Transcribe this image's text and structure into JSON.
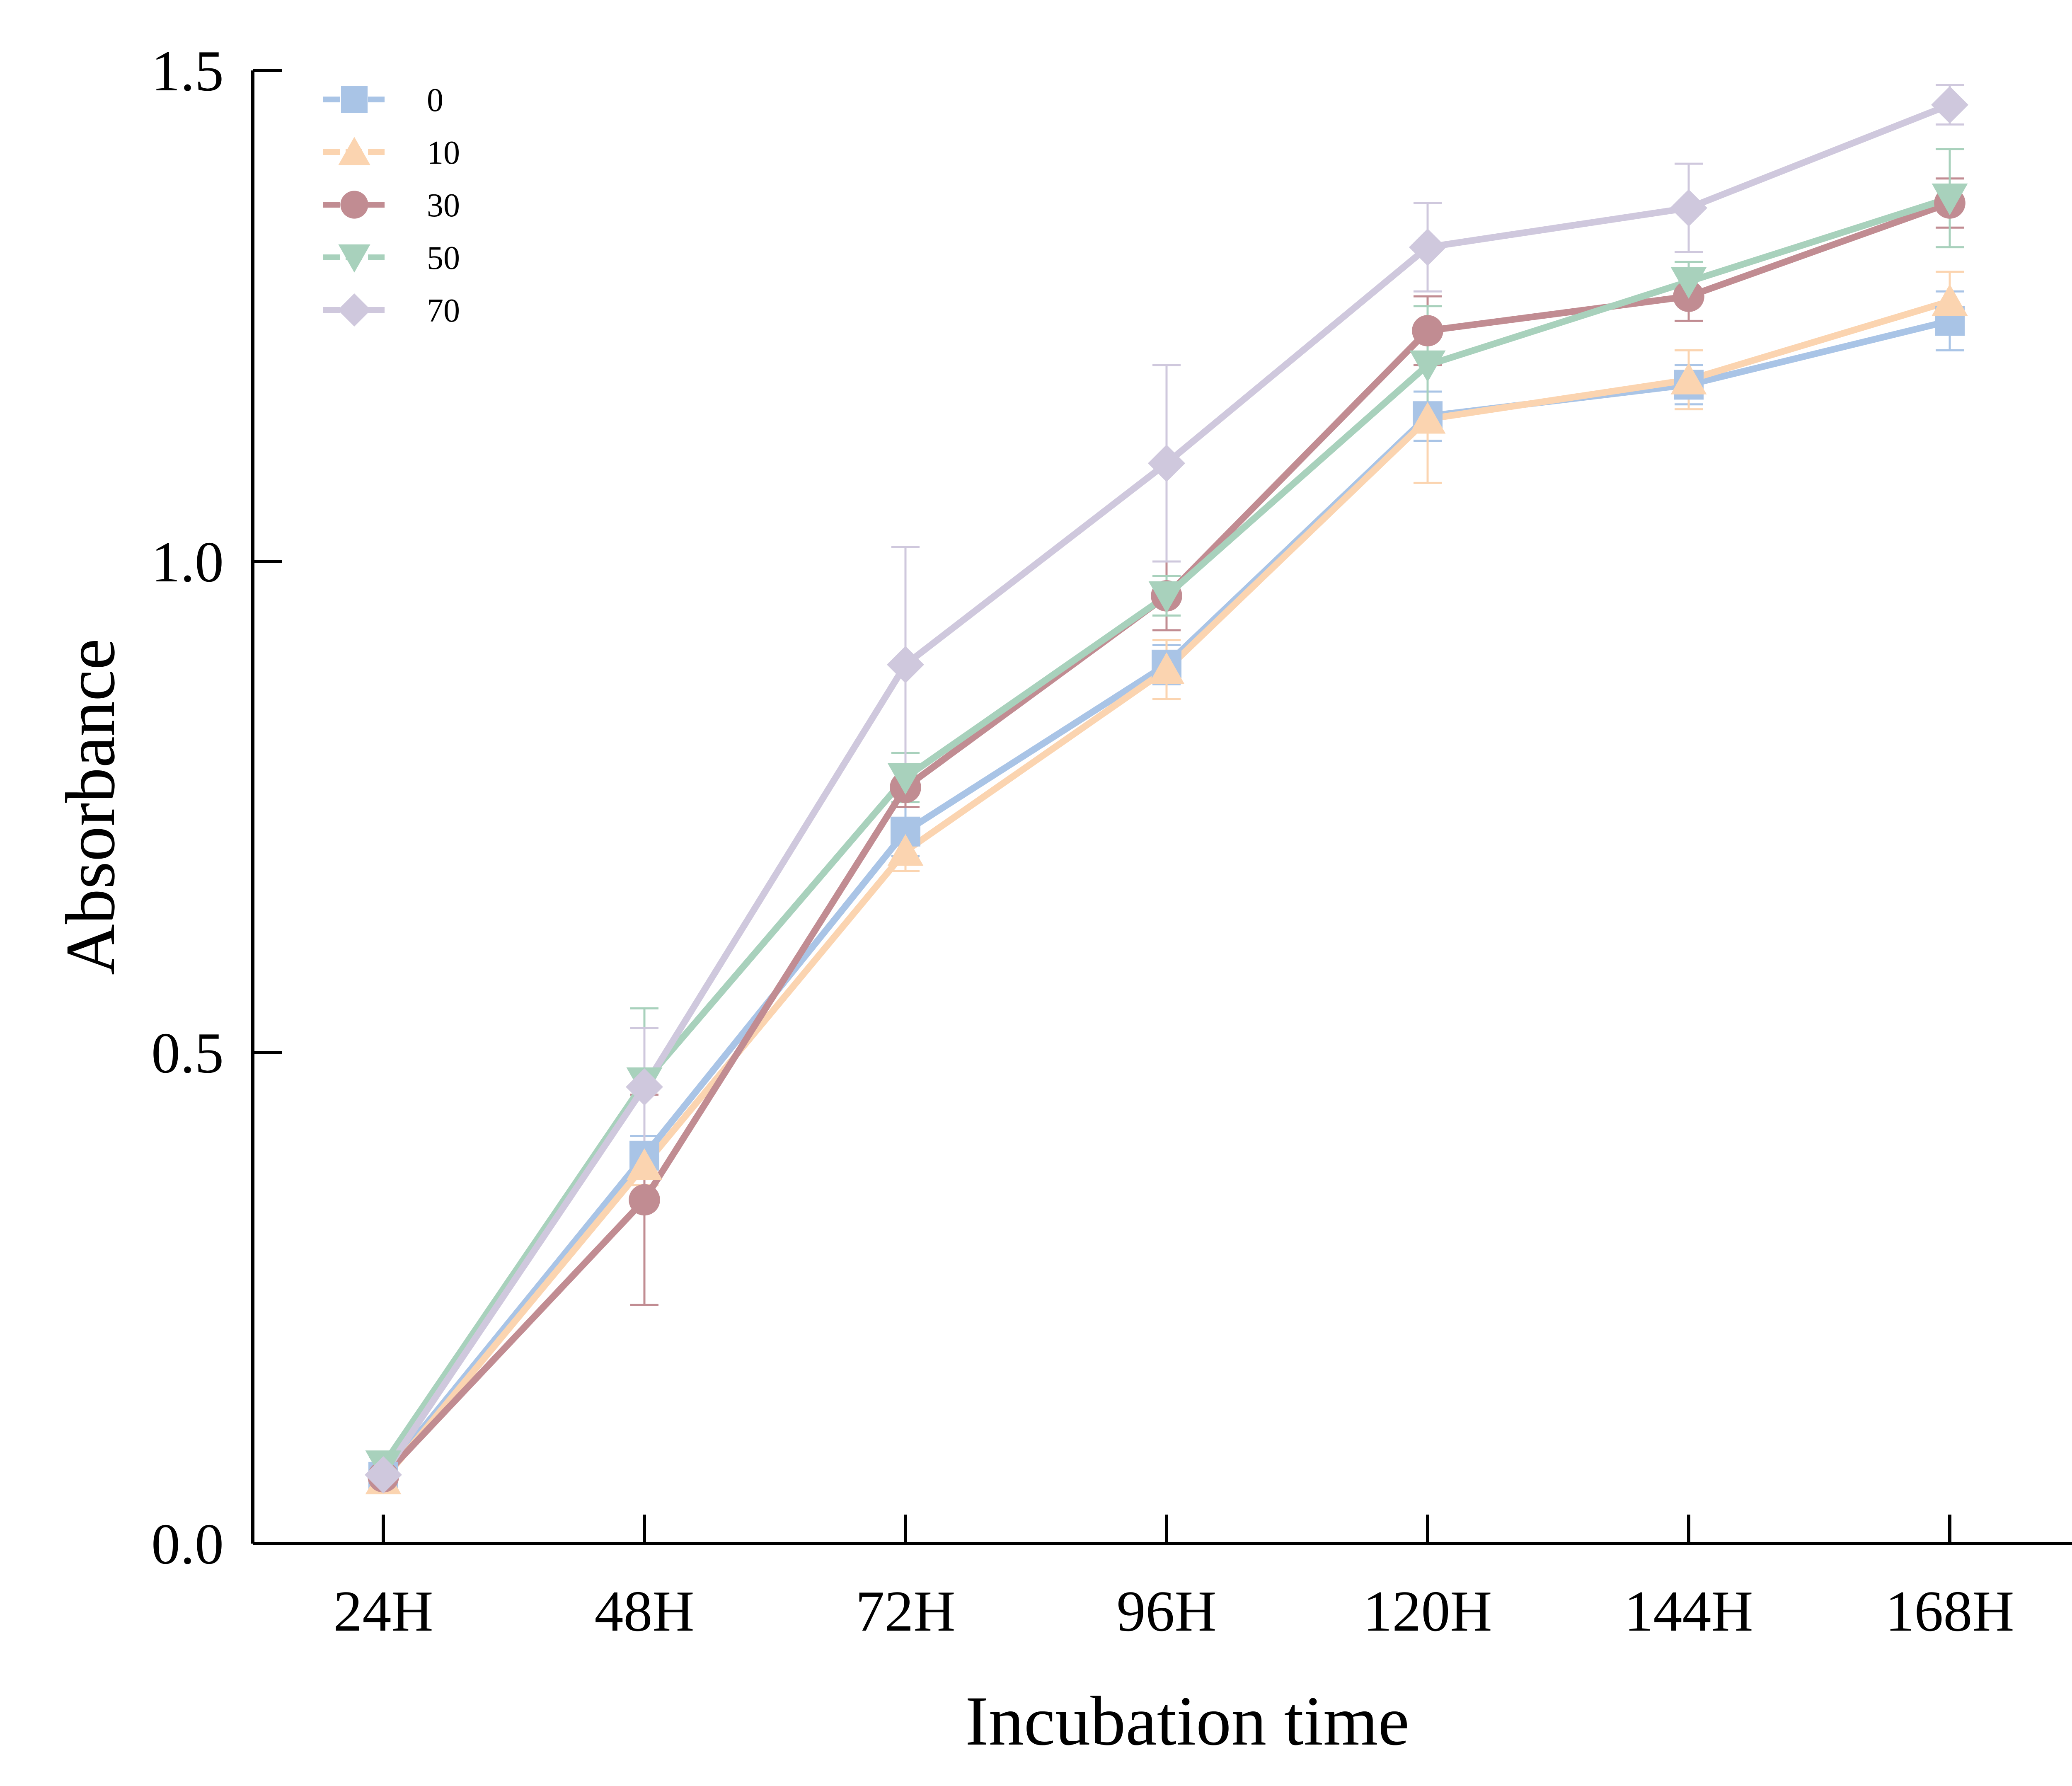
{
  "chart_data": {
    "type": "line",
    "title": "",
    "xlabel": "Incubation time",
    "ylabel": "Absorbance",
    "categories": [
      "24H",
      "48H",
      "72H",
      "96H",
      "120H",
      "144H",
      "168H"
    ],
    "ylim": [
      0,
      1.5
    ],
    "yticks": [
      "0.0",
      "0.5",
      "1.0",
      "1.5"
    ],
    "grid": false,
    "legend_position": "top-left",
    "series": [
      {
        "name": "0",
        "color": "#a9c4e6",
        "marker": "square",
        "values": [
          0.068,
          0.395,
          0.725,
          0.895,
          1.148,
          1.18,
          1.245
        ],
        "errors": [
          0.008,
          0.02,
          0.025,
          0.02,
          0.025,
          0.02,
          0.03
        ]
      },
      {
        "name": "10",
        "color": "#fbd4b0",
        "marker": "triangle-up",
        "values": [
          0.065,
          0.385,
          0.705,
          0.89,
          1.145,
          1.185,
          1.265
        ],
        "errors": [
          0.008,
          0.02,
          0.02,
          0.03,
          0.065,
          0.03,
          0.03
        ]
      },
      {
        "name": "30",
        "color": "#c18c92",
        "marker": "circle",
        "values": [
          0.068,
          0.35,
          0.77,
          0.965,
          1.235,
          1.27,
          1.365
        ],
        "errors": [
          0.008,
          0.107,
          0.02,
          0.035,
          0.035,
          0.025,
          0.025
        ]
      },
      {
        "name": "50",
        "color": "#a8d1bc",
        "marker": "triangle-down",
        "values": [
          0.08,
          0.47,
          0.78,
          0.965,
          1.2,
          1.285,
          1.37
        ],
        "errors": [
          0.008,
          0.075,
          0.025,
          0.02,
          0.06,
          0.02,
          0.05
        ]
      },
      {
        "name": "70",
        "color": "#cfc8dd",
        "marker": "diamond",
        "values": [
          0.07,
          0.465,
          0.895,
          1.1,
          1.32,
          1.36,
          1.465
        ],
        "errors": [
          0.008,
          0.06,
          0.12,
          0.1,
          0.045,
          0.045,
          0.02
        ]
      }
    ]
  }
}
